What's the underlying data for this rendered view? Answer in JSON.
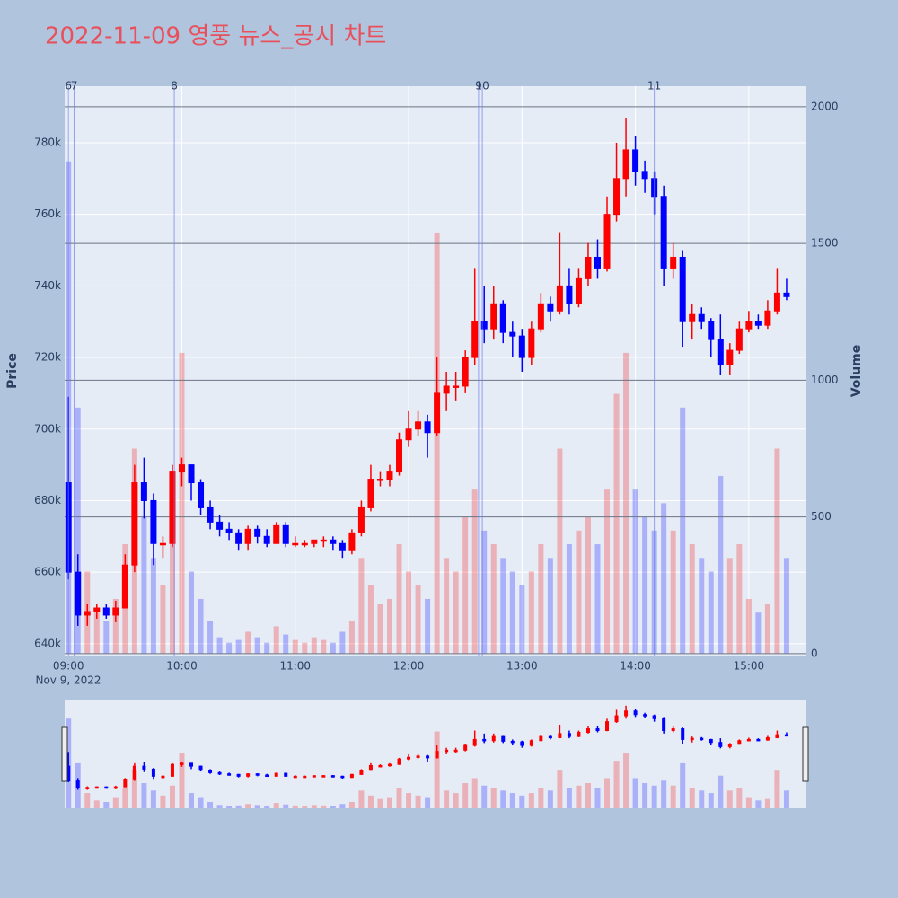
{
  "chart_data": {
    "type": "candlestick",
    "title": "2022-11-09 영풍 뉴스_공시 차트",
    "x_date_label": "Nov 9, 2022",
    "y_title": "Price",
    "y2_title": "Volume",
    "increasing_color": "#ff0000",
    "decreasing_color": "#0000ff",
    "news_color": "#6f7fe8",
    "xlim": [
      "08:58",
      "15:30"
    ],
    "xticks": [
      "09:00",
      "10:00",
      "11:00",
      "12:00",
      "13:00",
      "14:00",
      "15:00"
    ],
    "ylim": [
      636700,
      795800
    ],
    "yticks": [
      {
        "value": 640000,
        "label": "640k"
      },
      {
        "value": 660000,
        "label": "660k"
      },
      {
        "value": 680000,
        "label": "680k"
      },
      {
        "value": 700000,
        "label": "700k"
      },
      {
        "value": 720000,
        "label": "720k"
      },
      {
        "value": 740000,
        "label": "740k"
      },
      {
        "value": 760000,
        "label": "760k"
      },
      {
        "value": 780000,
        "label": "780k"
      }
    ],
    "y2lim": [
      -7,
      2075
    ],
    "y2ticks": [
      0,
      500,
      1000,
      1500,
      2000
    ],
    "news": [
      {
        "x": "09:00",
        "label": "6"
      },
      {
        "x": "09:03",
        "label": "7"
      },
      {
        "x": "09:56",
        "label": "8"
      },
      {
        "x": "12:37",
        "label": "9"
      },
      {
        "x": "12:39",
        "label": "10"
      },
      {
        "x": "14:10",
        "label": "11"
      }
    ],
    "x": [
      "09:00",
      "09:05",
      "09:10",
      "09:15",
      "09:20",
      "09:25",
      "09:30",
      "09:35",
      "09:40",
      "09:45",
      "09:50",
      "09:55",
      "10:00",
      "10:05",
      "10:10",
      "10:15",
      "10:20",
      "10:25",
      "10:30",
      "10:35",
      "10:40",
      "10:45",
      "10:50",
      "10:55",
      "11:00",
      "11:05",
      "11:10",
      "11:15",
      "11:20",
      "11:25",
      "11:30",
      "11:35",
      "11:40",
      "11:45",
      "11:50",
      "11:55",
      "12:00",
      "12:05",
      "12:10",
      "12:15",
      "12:20",
      "12:25",
      "12:30",
      "12:35",
      "12:40",
      "12:45",
      "12:50",
      "12:55",
      "13:00",
      "13:05",
      "13:10",
      "13:15",
      "13:20",
      "13:25",
      "13:30",
      "13:35",
      "13:40",
      "13:45",
      "13:50",
      "13:55",
      "14:00",
      "14:05",
      "14:10",
      "14:15",
      "14:20",
      "14:25",
      "14:30",
      "14:35",
      "14:40",
      "14:45",
      "14:50",
      "14:55",
      "15:00",
      "15:05",
      "15:10",
      "15:15",
      "15:20"
    ],
    "open": [
      685000,
      660000,
      648000,
      649000,
      650000,
      648000,
      650000,
      662000,
      685000,
      680000,
      668000,
      668000,
      688000,
      690000,
      685000,
      678000,
      674000,
      672000,
      671000,
      668000,
      672000,
      670000,
      668000,
      673000,
      668000,
      668000,
      668000,
      669000,
      669000,
      668000,
      666000,
      671000,
      678000,
      686000,
      686000,
      688000,
      697000,
      700000,
      702000,
      699000,
      710000,
      712000,
      712000,
      720000,
      730000,
      728000,
      735000,
      727000,
      726000,
      720000,
      728000,
      735000,
      733000,
      740000,
      735000,
      742000,
      748000,
      745000,
      760000,
      770000,
      778000,
      772000,
      770000,
      765000,
      745000,
      748000,
      730000,
      732000,
      730000,
      725000,
      718000,
      722000,
      728000,
      730000,
      729000,
      733000,
      738000
    ],
    "high": [
      709000,
      665000,
      651000,
      651000,
      651000,
      652000,
      665000,
      690000,
      692000,
      682000,
      670000,
      690000,
      692000,
      690000,
      686000,
      680000,
      676000,
      674000,
      672000,
      673000,
      673000,
      672000,
      674000,
      674000,
      670000,
      669000,
      669000,
      670000,
      670000,
      669000,
      672000,
      680000,
      690000,
      688000,
      690000,
      699000,
      705000,
      705000,
      704000,
      720000,
      716000,
      716000,
      722000,
      745000,
      740000,
      740000,
      736000,
      730000,
      728000,
      730000,
      738000,
      737000,
      755000,
      745000,
      745000,
      752000,
      753000,
      765000,
      780000,
      787000,
      782000,
      775000,
      772000,
      768000,
      752000,
      750000,
      735000,
      734000,
      731000,
      732000,
      724000,
      730000,
      733000,
      732000,
      736000,
      745000,
      742000
    ],
    "low": [
      658000,
      645000,
      645000,
      647000,
      647000,
      646000,
      650000,
      660000,
      675000,
      662000,
      664000,
      667000,
      684000,
      680000,
      676000,
      672000,
      670000,
      669000,
      666000,
      666000,
      668000,
      667000,
      668000,
      667000,
      667000,
      667000,
      667000,
      667000,
      666000,
      664000,
      665000,
      670000,
      677000,
      684000,
      684000,
      687000,
      695000,
      698000,
      692000,
      698000,
      705000,
      708000,
      710000,
      718000,
      724000,
      725000,
      724000,
      720000,
      716000,
      718000,
      727000,
      730000,
      732000,
      732000,
      734000,
      740000,
      742000,
      744000,
      758000,
      765000,
      768000,
      766000,
      760000,
      740000,
      742000,
      723000,
      725000,
      728000,
      720000,
      715000,
      715000,
      721000,
      727000,
      728000,
      728000,
      732000,
      736000
    ],
    "close": [
      660000,
      648000,
      649000,
      650000,
      648000,
      650000,
      662000,
      685000,
      680000,
      668000,
      668000,
      688000,
      690000,
      685000,
      678000,
      674000,
      672000,
      671000,
      668000,
      672000,
      670000,
      668000,
      673000,
      668000,
      668000,
      668000,
      669000,
      669000,
      668000,
      666000,
      671000,
      678000,
      686000,
      686000,
      688000,
      697000,
      700000,
      702000,
      699000,
      710000,
      712000,
      712000,
      720000,
      730000,
      728000,
      735000,
      727000,
      726000,
      720000,
      728000,
      735000,
      733000,
      740000,
      735000,
      742000,
      748000,
      745000,
      760000,
      770000,
      778000,
      772000,
      770000,
      765000,
      745000,
      748000,
      730000,
      732000,
      730000,
      725000,
      718000,
      722000,
      728000,
      730000,
      729000,
      733000,
      738000,
      737000
    ],
    "volume": [
      1800,
      900,
      300,
      150,
      120,
      200,
      400,
      750,
      500,
      350,
      250,
      450,
      1100,
      300,
      200,
      120,
      60,
      40,
      50,
      80,
      60,
      40,
      100,
      70,
      50,
      40,
      60,
      50,
      40,
      80,
      120,
      350,
      250,
      180,
      200,
      400,
      300,
      250,
      200,
      1540,
      350,
      300,
      500,
      600,
      450,
      400,
      350,
      300,
      250,
      300,
      400,
      350,
      750,
      400,
      450,
      500,
      400,
      600,
      950,
      1100,
      600,
      500,
      450,
      550,
      450,
      900,
      400,
      350,
      300,
      650,
      350,
      400,
      200,
      150,
      180,
      750,
      350
    ]
  }
}
